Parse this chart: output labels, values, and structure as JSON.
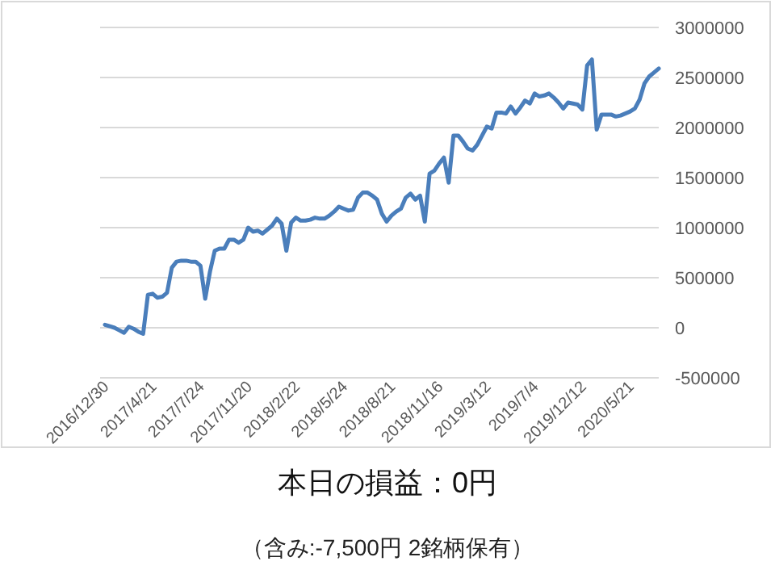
{
  "chart_data": {
    "type": "line",
    "categories": [
      "2016/12/30",
      null,
      null,
      null,
      null,
      null,
      null,
      null,
      null,
      null,
      "2017/4/21",
      null,
      null,
      null,
      null,
      null,
      null,
      null,
      null,
      null,
      "2017/7/24",
      null,
      null,
      null,
      null,
      null,
      null,
      null,
      null,
      null,
      "2017/11/20",
      null,
      null,
      null,
      null,
      null,
      null,
      null,
      null,
      null,
      "2018/2/22",
      null,
      null,
      null,
      null,
      null,
      null,
      null,
      null,
      null,
      "2018/5/24",
      null,
      null,
      null,
      null,
      null,
      null,
      null,
      null,
      null,
      "2018/8/21",
      null,
      null,
      null,
      null,
      null,
      null,
      null,
      null,
      null,
      "2018/11/16",
      null,
      null,
      null,
      null,
      null,
      null,
      null,
      null,
      null,
      "2019/3/12",
      null,
      null,
      null,
      null,
      null,
      null,
      null,
      null,
      null,
      "2019/7/4",
      null,
      null,
      null,
      null,
      null,
      null,
      null,
      null,
      null,
      "2019/12/12",
      null,
      null,
      null,
      null,
      null,
      null,
      null,
      null,
      null,
      "2020/5/21",
      null,
      null,
      null,
      null,
      null,
      null
    ],
    "series": [
      {
        "color": "#4a7ebb",
        "values": [
          30000,
          15000,
          0,
          -25000,
          -50000,
          10000,
          -10000,
          -40000,
          -60000,
          330000,
          340000,
          300000,
          310000,
          350000,
          600000,
          660000,
          670000,
          670000,
          660000,
          660000,
          620000,
          290000,
          560000,
          770000,
          790000,
          790000,
          880000,
          880000,
          850000,
          880000,
          1000000,
          960000,
          970000,
          940000,
          980000,
          1020000,
          1090000,
          1040000,
          770000,
          1050000,
          1100000,
          1070000,
          1070000,
          1080000,
          1100000,
          1090000,
          1090000,
          1120000,
          1160000,
          1210000,
          1190000,
          1170000,
          1180000,
          1300000,
          1350000,
          1350000,
          1320000,
          1280000,
          1140000,
          1060000,
          1120000,
          1160000,
          1190000,
          1300000,
          1340000,
          1280000,
          1320000,
          1060000,
          1540000,
          1570000,
          1640000,
          1700000,
          1450000,
          1920000,
          1920000,
          1860000,
          1790000,
          1770000,
          1830000,
          1920000,
          2010000,
          1990000,
          2150000,
          2150000,
          2140000,
          2210000,
          2140000,
          2200000,
          2270000,
          2240000,
          2340000,
          2310000,
          2320000,
          2340000,
          2300000,
          2250000,
          2190000,
          2250000,
          2240000,
          2230000,
          2180000,
          2620000,
          2680000,
          1980000,
          2130000,
          2130000,
          2130000,
          2110000,
          2120000,
          2140000,
          2160000,
          2190000,
          2280000,
          2440000,
          2510000,
          2550000,
          2590000
        ]
      }
    ],
    "ylim": [
      -500000,
      3000000
    ],
    "yticks": [
      -500000,
      0,
      500000,
      1000000,
      1500000,
      2000000,
      2500000,
      3000000
    ],
    "grid": "y",
    "annotations": [
      "本日の損益：0円",
      "（含み:-7,500円 2銘柄保有）"
    ]
  }
}
